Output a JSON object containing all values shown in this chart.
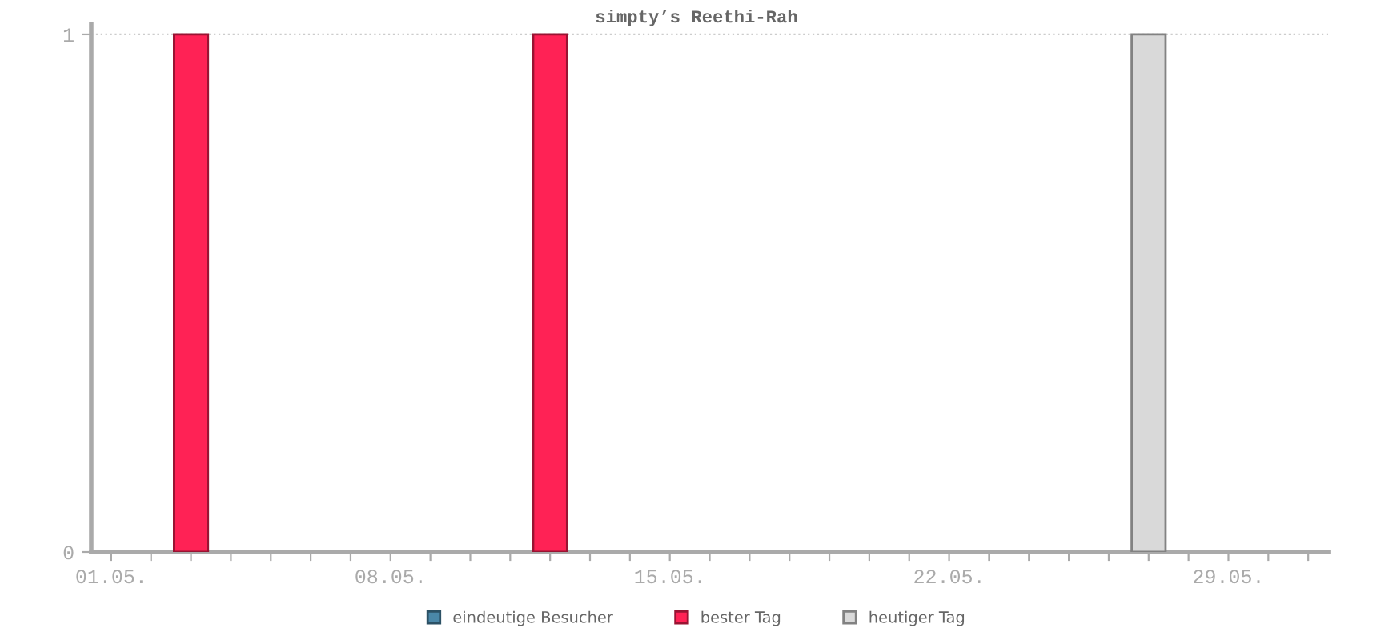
{
  "chart_data": {
    "type": "bar",
    "title": "simpty’s Reethi-Rah",
    "categories": [
      "01.05.",
      null,
      null,
      null,
      null,
      null,
      null,
      "08.05.",
      null,
      null,
      null,
      null,
      null,
      null,
      "15.05.",
      null,
      null,
      null,
      null,
      null,
      null,
      "22.05.",
      null,
      null,
      null,
      null,
      null,
      null,
      "29.05.",
      null,
      null
    ],
    "series": [
      {
        "name": "eindeutige Besucher",
        "color": "#4a87a8",
        "values": [
          null,
          null,
          null,
          null,
          null,
          null,
          null,
          null,
          null,
          null,
          null,
          null,
          null,
          null,
          null,
          null,
          null,
          null,
          null,
          null,
          null,
          null,
          null,
          null,
          null,
          null,
          null,
          null,
          null,
          null,
          null
        ]
      },
      {
        "name": "bester Tag",
        "color": "#ff2255",
        "values": [
          null,
          null,
          1,
          null,
          null,
          null,
          null,
          null,
          null,
          null,
          null,
          1,
          null,
          null,
          null,
          null,
          null,
          null,
          null,
          null,
          null,
          null,
          null,
          null,
          null,
          null,
          null,
          null,
          null,
          null,
          null
        ]
      },
      {
        "name": "heutiger Tag",
        "color": "#d9d9d9",
        "values": [
          null,
          null,
          null,
          null,
          null,
          null,
          null,
          null,
          null,
          null,
          null,
          null,
          null,
          null,
          null,
          null,
          null,
          null,
          null,
          null,
          null,
          null,
          null,
          null,
          null,
          null,
          1,
          null,
          null,
          null,
          null
        ]
      }
    ],
    "ylim": [
      0,
      1.02
    ],
    "yticks": [
      0,
      1
    ],
    "grid": "y",
    "legend": "bottom"
  }
}
